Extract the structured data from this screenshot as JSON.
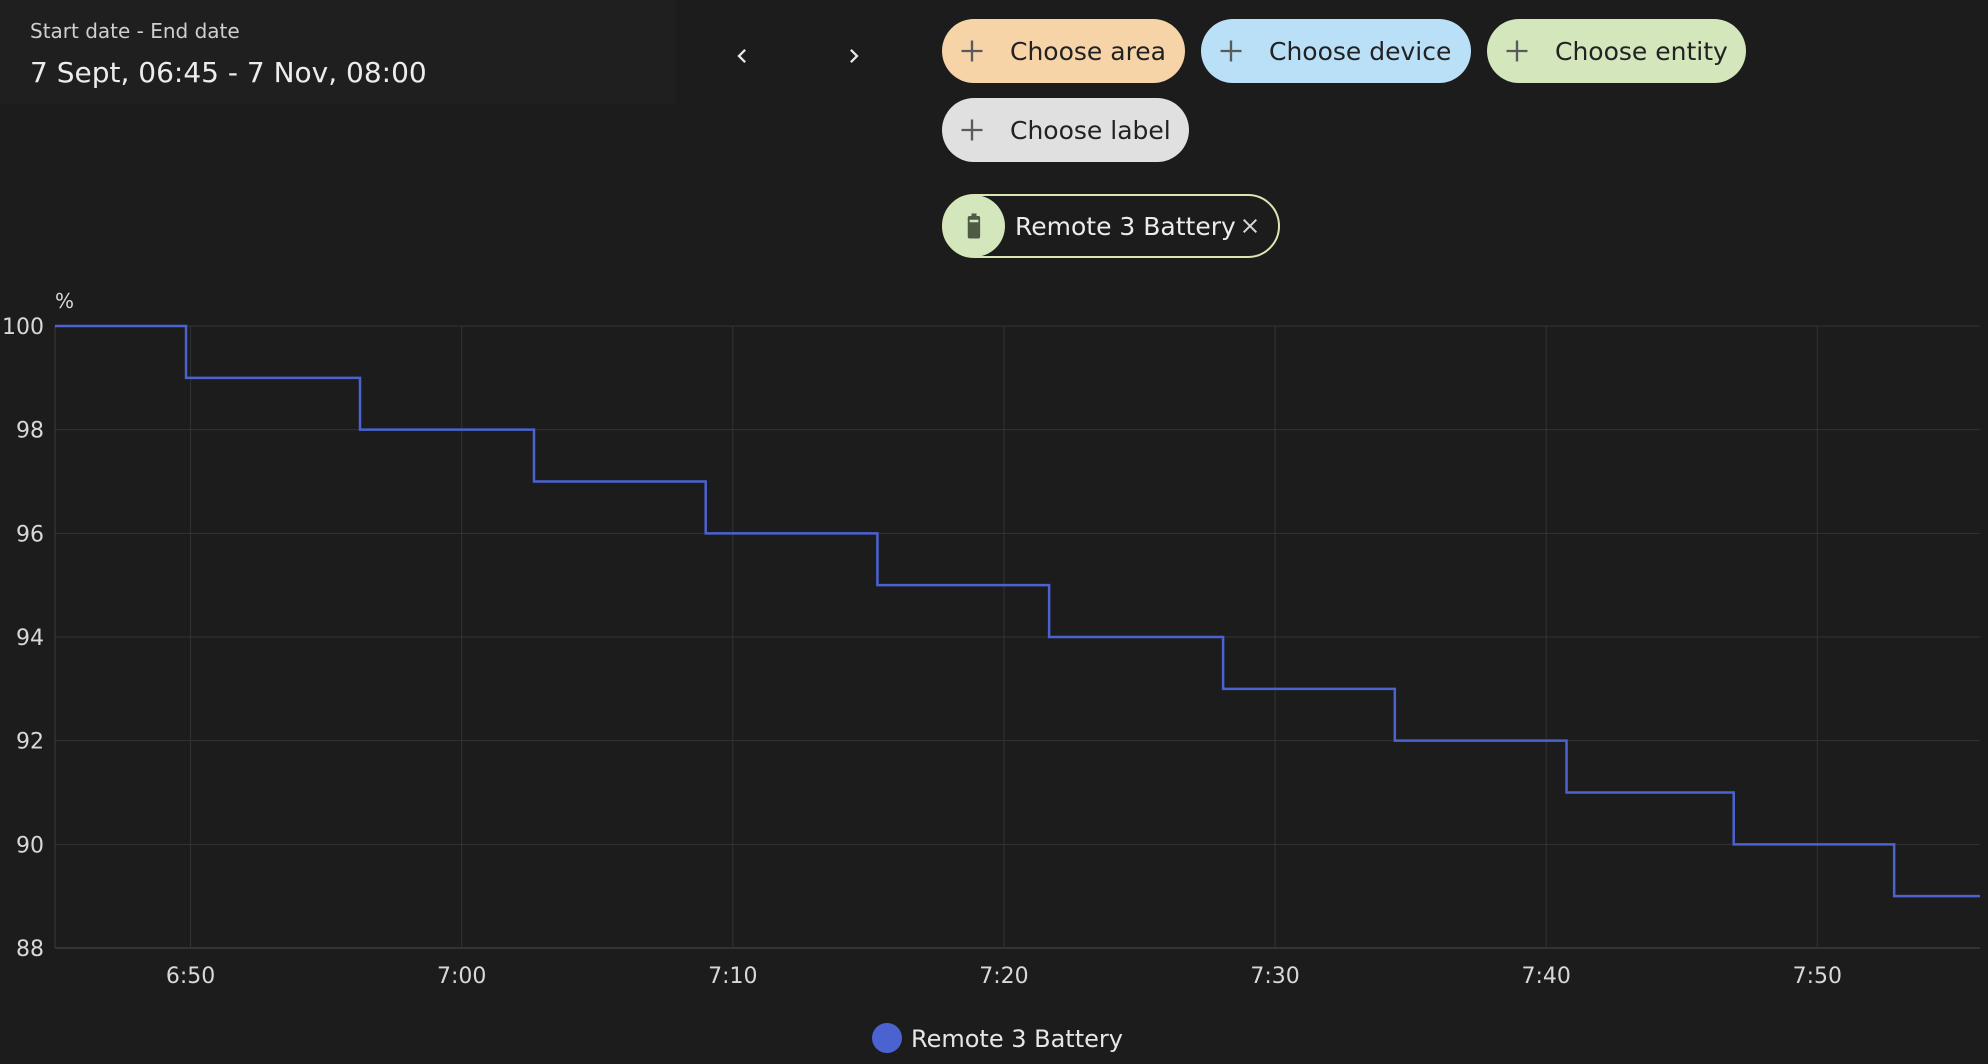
{
  "date_picker": {
    "label": "Start date - End date",
    "value": "7 Sept, 06:45 - 7 Nov, 08:00"
  },
  "navigation": {
    "prev_icon": "chevron-left-icon",
    "next_icon": "chevron-right-icon"
  },
  "target_picker": {
    "chips": [
      {
        "label": "Choose area",
        "icon": "plus-icon",
        "color": "#f7d4a8"
      },
      {
        "label": "Choose device",
        "icon": "plus-icon",
        "color": "#b9e0f7"
      },
      {
        "label": "Choose entity",
        "icon": "plus-icon",
        "color": "#d3e6bc"
      },
      {
        "label": "Choose label",
        "icon": "plus-icon",
        "color": "#e0e0e0"
      }
    ],
    "selected_entity": {
      "label": "Remote 3 Battery",
      "icon": "battery-icon",
      "remove_icon": "close-icon"
    }
  },
  "chart_data": {
    "type": "line",
    "step": true,
    "ylabel": "%",
    "ylim": [
      88,
      100
    ],
    "yticks": [
      100,
      98,
      96,
      94,
      92,
      90,
      88
    ],
    "xlim": [
      "06:45",
      "07:56"
    ],
    "xticks": [
      "6:50",
      "7:00",
      "7:10",
      "7:20",
      "7:30",
      "7:40",
      "7:50"
    ],
    "grid": true,
    "legend_position": "bottom",
    "series": [
      {
        "name": "Remote 3 Battery",
        "color": "#4a63d1",
        "x": [
          "06:45",
          "06:49:50",
          "06:56:15",
          "07:02:40",
          "07:09:00",
          "07:15:20",
          "07:21:40",
          "07:28:05",
          "07:34:25",
          "07:40:45",
          "07:46:55",
          "07:52:50",
          "07:56"
        ],
        "values": [
          100,
          99,
          98,
          97,
          96,
          95,
          94,
          93,
          92,
          91,
          90,
          89,
          89
        ]
      }
    ]
  }
}
